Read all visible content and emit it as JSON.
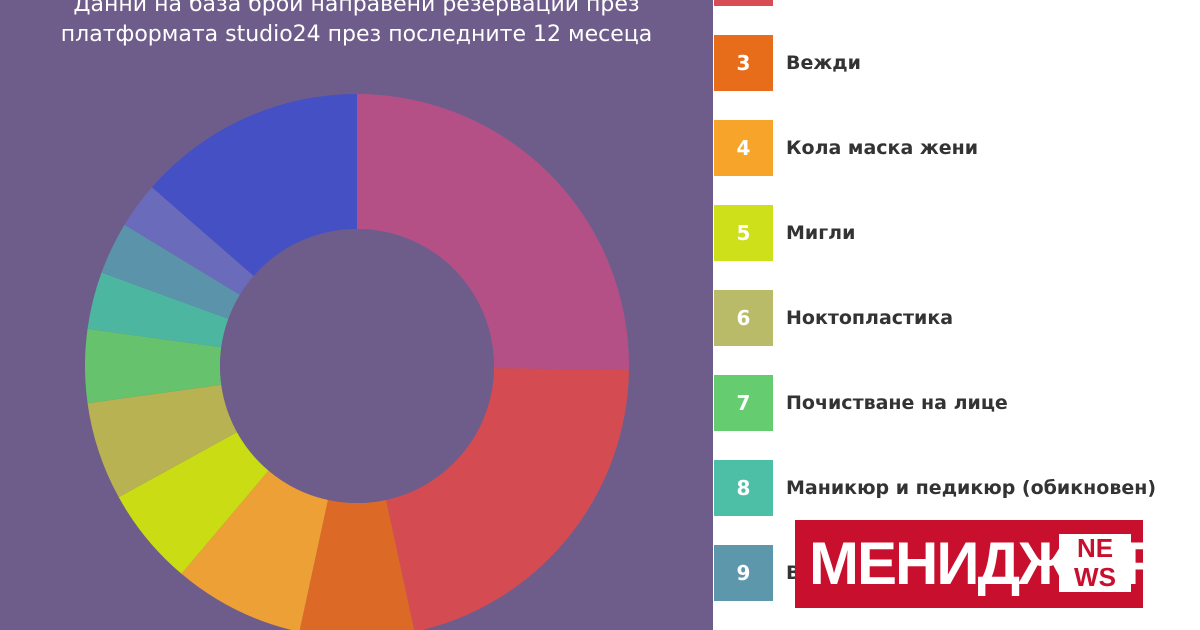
{
  "subtitle": {
    "line1": "Данни на база брой направени резервации през",
    "line2": "платформата studio24 през последните 12 месеца"
  },
  "chart_data": {
    "type": "pie",
    "donut": true,
    "series": [
      {
        "id": "1",
        "value": 26,
        "color": "#b55087"
      },
      {
        "id": "2",
        "value": 22,
        "color": "#d44c52"
      },
      {
        "id": "3",
        "value": 7,
        "color": "#dc6a26"
      },
      {
        "id": "4",
        "value": 8,
        "color": "#eca035"
      },
      {
        "id": "5",
        "value": 6,
        "color": "#c9dc14"
      },
      {
        "id": "6",
        "value": 6,
        "color": "#b8b252"
      },
      {
        "id": "7",
        "value": 4.5,
        "color": "#66c26d"
      },
      {
        "id": "8",
        "value": 3.5,
        "color": "#4cb6a1"
      },
      {
        "id": "9",
        "value": 3.2,
        "color": "#5b93ab"
      },
      {
        "id": "10",
        "value": 2.8,
        "color": "#6a6bba"
      },
      {
        "id": "11",
        "value": 14,
        "color": "#4450c4"
      }
    ]
  },
  "legend": {
    "items": [
      {
        "number": "3",
        "label": "Вежди",
        "color": "#e86d1a"
      },
      {
        "number": "4",
        "label": "Кола маска жени",
        "color": "#f6a52a"
      },
      {
        "number": "5",
        "label": "Мигли",
        "color": "#cde01a"
      },
      {
        "number": "6",
        "label": "Ноктопластика",
        "color": "#b9bb69"
      },
      {
        "number": "7",
        "label": "Почистване на лице",
        "color": "#66cc70"
      },
      {
        "number": "8",
        "label": "Маникюр и педикюр (обикновен)",
        "color": "#4cbfa6"
      },
      {
        "number": "9",
        "label": "В",
        "color": "#5d97ab"
      }
    ],
    "top_partial_color": "#d84c55"
  },
  "logo": {
    "text": "МЕНИДЖЪР.",
    "box_top": "NE",
    "box_bottom": "WS"
  }
}
